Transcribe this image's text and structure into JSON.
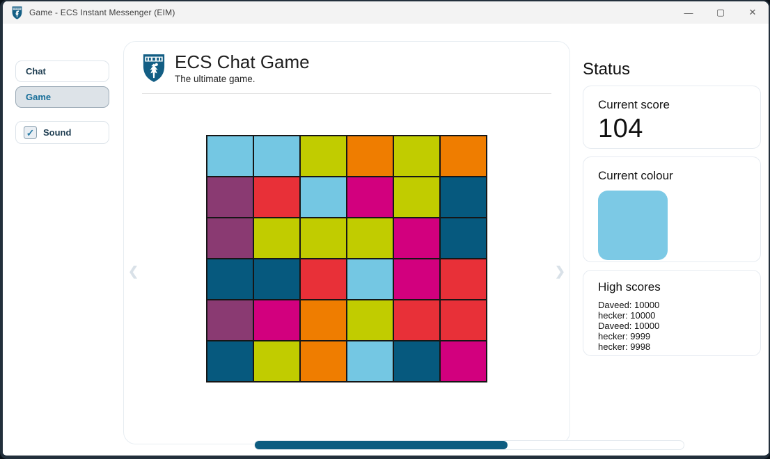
{
  "window": {
    "title": "Game - ECS Instant Messenger (EIM)",
    "controls": {
      "minimize": "—",
      "maximize": "▢",
      "close": "✕"
    }
  },
  "sidebar": {
    "tabs": [
      {
        "label": "Chat",
        "active": false
      },
      {
        "label": "Game",
        "active": true
      }
    ],
    "sound": {
      "label": "Sound",
      "checked": true,
      "check_glyph": "✓"
    }
  },
  "main": {
    "title": "ECS Chat Game",
    "subtitle": "The ultimate game.",
    "carousel": {
      "prev_glyph": "❮",
      "next_glyph": "❯"
    },
    "grid": {
      "rows": 6,
      "cols": 6,
      "tiles": [
        [
          "sky",
          "sky",
          "lime",
          "orange",
          "lime",
          "orange"
        ],
        [
          "purple",
          "red",
          "sky",
          "magenta",
          "lime",
          "teal"
        ],
        [
          "purple",
          "lime",
          "lime",
          "lime",
          "magenta",
          "teal"
        ],
        [
          "teal",
          "teal",
          "red",
          "sky",
          "magenta",
          "red"
        ],
        [
          "purple",
          "magenta",
          "orange",
          "lime",
          "red",
          "red"
        ],
        [
          "teal",
          "lime",
          "orange",
          "sky",
          "teal",
          "magenta"
        ]
      ]
    },
    "palette": {
      "sky": "#74C7E3",
      "lime": "#C1CC00",
      "orange": "#EF7D00",
      "purple": "#8A3A72",
      "red": "#E83038",
      "magenta": "#D2007E",
      "teal": "#06597E"
    },
    "progress": {
      "percent": 59,
      "fill_color": "#0D5C80"
    }
  },
  "status": {
    "heading": "Status",
    "score_card": {
      "label": "Current score",
      "value": "104"
    },
    "colour_card": {
      "label": "Current colour",
      "hex": "#7CC9E5"
    },
    "high_scores_card": {
      "label": "High scores",
      "entries": [
        "Daveed: 10000",
        "hecker: 10000",
        "Daveed: 10000",
        "hecker: 9999",
        "hecker: 9998"
      ]
    }
  },
  "brand": {
    "shield_color": "#135E84"
  }
}
